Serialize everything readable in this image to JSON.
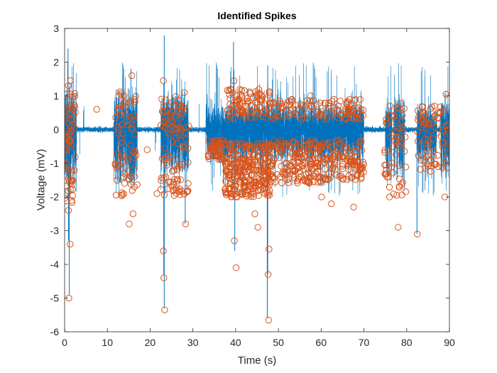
{
  "chart_data": {
    "type": "line",
    "title": "Identified Spikes",
    "xlabel": "Time (s)",
    "ylabel": "Voltage (mV)",
    "xlim": [
      0,
      90
    ],
    "ylim": [
      -6,
      3
    ],
    "xticks": [
      0,
      10,
      20,
      30,
      40,
      50,
      60,
      70,
      80,
      90
    ],
    "yticks": [
      3,
      2,
      1,
      0,
      -1,
      -2,
      -3,
      -4,
      -5,
      -6
    ],
    "grid": false,
    "legend": "none",
    "colors": {
      "signal": "#0072BD",
      "markers": "#D95319"
    },
    "series": [
      {
        "type": "line",
        "description": "continuous recording trace; dense bursts of activity",
        "bursts": [
          {
            "t0": 0.0,
            "t1": 2.8,
            "pos": 1.2,
            "neg": -1.9
          },
          {
            "t0": 11.5,
            "t1": 17.0,
            "pos": 1.3,
            "neg": -1.6
          },
          {
            "t0": 22.5,
            "t1": 29.0,
            "pos": 1.0,
            "neg": -1.3
          },
          {
            "t0": 33.0,
            "t1": 70.0,
            "pos": 0.7,
            "neg": -0.9
          },
          {
            "t0": 75.0,
            "t1": 76.5,
            "pos": 0.8,
            "neg": -1.5
          },
          {
            "t0": 77.0,
            "t1": 79.5,
            "pos": 0.9,
            "neg": -1.5
          },
          {
            "t0": 82.5,
            "t1": 83.5,
            "pos": 0.6,
            "neg": -1.0
          },
          {
            "t0": 83.5,
            "t1": 87.0,
            "pos": 0.5,
            "neg": -0.8
          },
          {
            "t0": 88.0,
            "t1": 90.0,
            "pos": 0.8,
            "neg": -1.5
          }
        ],
        "peaks": [
          [
            0.8,
            2.4
          ],
          [
            1.1,
            -4.9
          ],
          [
            0.9,
            -3.3
          ],
          [
            15.5,
            1.8
          ],
          [
            23.3,
            2.8
          ],
          [
            23.3,
            -5.3
          ],
          [
            23.2,
            -4.3
          ],
          [
            28.2,
            -2.8
          ],
          [
            39.5,
            2.6
          ],
          [
            39.8,
            -3.6
          ],
          [
            47.5,
            1.9
          ],
          [
            47.4,
            -5.6
          ],
          [
            47.5,
            -4.3
          ],
          [
            82.4,
            -3.1
          ]
        ]
      },
      {
        "type": "scatter",
        "description": "identified spike markers (open circles)",
        "points": [
          [
            1.0,
            -5.0
          ],
          [
            1.3,
            -3.4
          ],
          [
            0.9,
            -2.4
          ],
          [
            0.9,
            1.3
          ],
          [
            1.4,
            1.45
          ],
          [
            7.5,
            0.6
          ],
          [
            15.7,
            1.6
          ],
          [
            15.1,
            -2.8
          ],
          [
            16.0,
            -2.5
          ],
          [
            23.1,
            1.45
          ],
          [
            23.4,
            -5.35
          ],
          [
            23.2,
            -4.4
          ],
          [
            23.1,
            -3.6
          ],
          [
            28.0,
            1.1
          ],
          [
            28.3,
            -2.8
          ],
          [
            21.6,
            -1.9
          ],
          [
            19.3,
            -0.6
          ],
          [
            39.6,
            1.45
          ],
          [
            39.7,
            -3.3
          ],
          [
            40.1,
            -4.1
          ],
          [
            47.7,
            -5.65
          ],
          [
            47.6,
            -4.3
          ],
          [
            47.8,
            -3.55
          ],
          [
            45.2,
            -2.9
          ],
          [
            57.5,
            1.0
          ],
          [
            60.1,
            -2.0
          ],
          [
            67.6,
            -2.3
          ],
          [
            76.1,
            0.7
          ],
          [
            77.8,
            0.65
          ],
          [
            78.0,
            -2.9
          ],
          [
            82.5,
            -3.1
          ],
          [
            89.2,
            1.05
          ],
          [
            76.0,
            -2.0
          ],
          [
            88.9,
            -2.0
          ],
          [
            62.4,
            -2.2
          ],
          [
            44.5,
            -2.5
          ]
        ],
        "clusters": [
          {
            "x0": 0.0,
            "x1": 2.6,
            "ymin": -2.2,
            "ymax": 1.2,
            "n": 70
          },
          {
            "x0": 11.8,
            "x1": 17.0,
            "ymin": -2.0,
            "ymax": 1.2,
            "n": 75
          },
          {
            "x0": 22.5,
            "x1": 29.0,
            "ymin": -2.0,
            "ymax": 1.0,
            "n": 110
          },
          {
            "x0": 33.5,
            "x1": 37.5,
            "ymin": -0.9,
            "ymax": -0.3,
            "n": 55
          },
          {
            "x0": 37.5,
            "x1": 48.0,
            "ymin": -2.0,
            "ymax": -0.4,
            "n": 280
          },
          {
            "x0": 37.5,
            "x1": 48.0,
            "ymin": 0.3,
            "ymax": 1.2,
            "n": 90
          },
          {
            "x0": 48.0,
            "x1": 61.0,
            "ymin": -1.6,
            "ymax": -0.3,
            "n": 190
          },
          {
            "x0": 48.0,
            "x1": 70.0,
            "ymin": 0.3,
            "ymax": 0.9,
            "n": 110
          },
          {
            "x0": 61.0,
            "x1": 70.0,
            "ymin": -1.5,
            "ymax": -0.3,
            "n": 110
          },
          {
            "x0": 74.8,
            "x1": 79.8,
            "ymin": -2.0,
            "ymax": 0.8,
            "n": 60
          },
          {
            "x0": 82.5,
            "x1": 90.0,
            "ymin": -1.3,
            "ymax": 0.7,
            "n": 80
          }
        ]
      }
    ]
  }
}
